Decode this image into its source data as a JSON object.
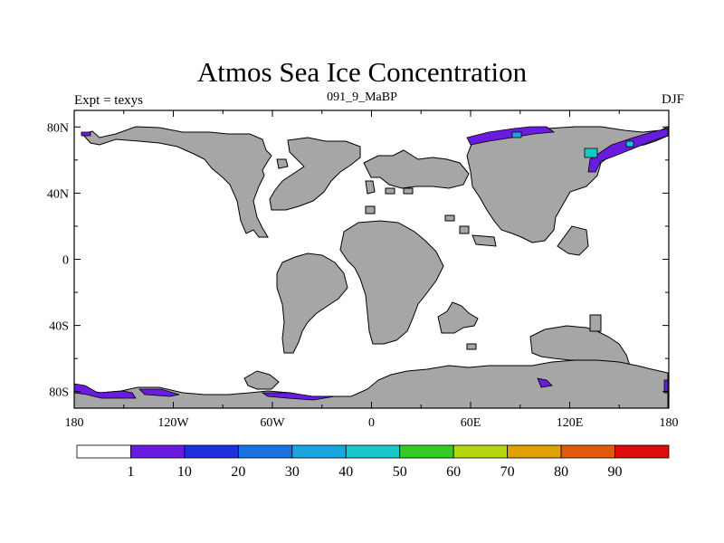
{
  "title": "Atmos Sea Ice Concentration",
  "subtitle_left": "Expt = texys",
  "subtitle_center": "091_9_MaBP",
  "subtitle_right": "DJF",
  "colors": {
    "land": "#a6a6a6",
    "ice_low": "#6a1be0",
    "ice_mid": "#1aa6e0",
    "ice_cyan": "#19c8c8"
  },
  "map": {
    "x_ticks": [
      "180",
      "120W",
      "60W",
      "0",
      "60E",
      "120E",
      "180"
    ],
    "y_ticks": [
      "80N",
      "40N",
      "0",
      "40S",
      "80S"
    ]
  },
  "colorbar": {
    "labels": [
      "1",
      "10",
      "20",
      "30",
      "40",
      "50",
      "60",
      "70",
      "80",
      "90"
    ],
    "colors": [
      "#ffffff",
      "#6a1be0",
      "#1e2fe0",
      "#1a72e0",
      "#1aa6e0",
      "#19c8c8",
      "#33cc22",
      "#b4d60a",
      "#e0a000",
      "#e05a0a",
      "#e00a0a"
    ]
  }
}
